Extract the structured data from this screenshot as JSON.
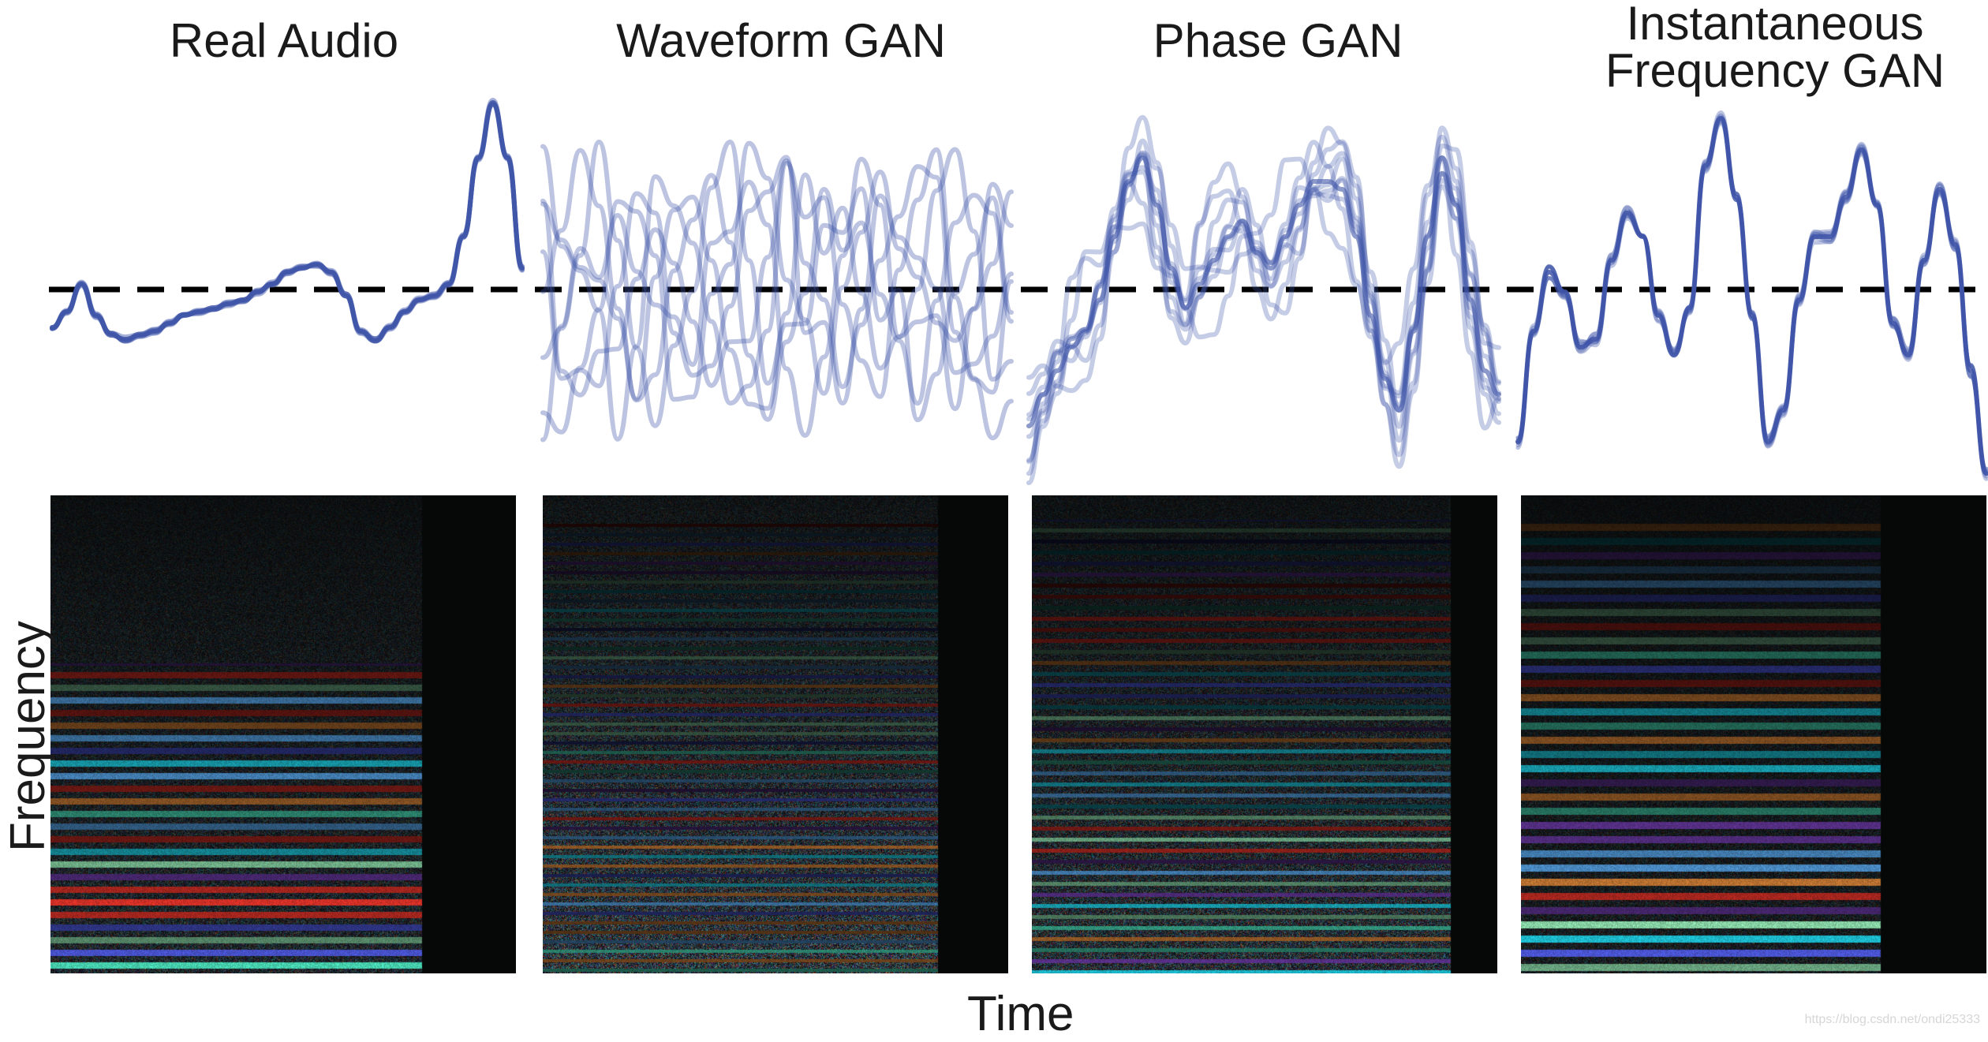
{
  "panels": [
    {
      "id": "real-audio",
      "title": "Real Audio"
    },
    {
      "id": "waveform-gan",
      "title": "Waveform GAN"
    },
    {
      "id": "phase-gan",
      "title": "Phase GAN"
    },
    {
      "id": "if-gan",
      "title_line1": "Instantaneous",
      "title_line2": "Frequency GAN"
    }
  ],
  "axes": {
    "y_label": "Frequency",
    "x_label": "Time"
  },
  "colors": {
    "wave": "#3f55a8",
    "baseline": "#000000",
    "spectrogram_bg": "#060808"
  },
  "watermark": "https://blog.csdn.net/ondi25333"
}
